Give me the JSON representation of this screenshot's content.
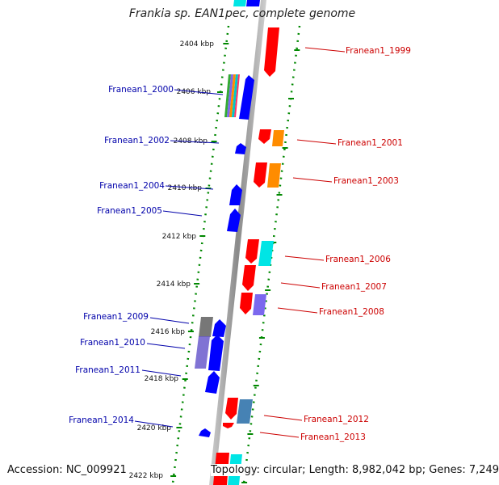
{
  "header": {
    "title": "Frankia sp. EAN1pec, complete genome"
  },
  "footer": {
    "accession": "Accession: NC_009921",
    "summary": "Topology: circular; Length: 8,982,042 bp; Genes: 7,249"
  },
  "ruler_ticks": [
    {
      "label": "2404 kbp"
    },
    {
      "label": "2406 kbp"
    },
    {
      "label": "2408 kbp"
    },
    {
      "label": "2410 kbp"
    },
    {
      "label": "2412 kbp"
    },
    {
      "label": "2414 kbp"
    },
    {
      "label": "2416 kbp"
    },
    {
      "label": "2418 kbp"
    },
    {
      "label": "2420 kbp"
    },
    {
      "label": "2422 kbp"
    }
  ],
  "left_labels": [
    {
      "label": "Franean1_2000",
      "color": "#0000aa"
    },
    {
      "label": "Franean1_2002",
      "color": "#0000aa"
    },
    {
      "label": "Franean1_2004",
      "color": "#0000aa"
    },
    {
      "label": "Franean1_2005",
      "color": "#0000aa"
    },
    {
      "label": "Franean1_2009",
      "color": "#0000aa"
    },
    {
      "label": "Franean1_2010",
      "color": "#0000aa"
    },
    {
      "label": "Franean1_2011",
      "color": "#0000aa"
    },
    {
      "label": "Franean1_2014",
      "color": "#0000aa"
    }
  ],
  "right_labels": [
    {
      "label": "Franean1_1999",
      "color": "#cc0000"
    },
    {
      "label": "Franean1_2001",
      "color": "#cc0000"
    },
    {
      "label": "Franean1_2003",
      "color": "#cc0000"
    },
    {
      "label": "Franean1_2006",
      "color": "#cc0000"
    },
    {
      "label": "Franean1_2007",
      "color": "#cc0000"
    },
    {
      "label": "Franean1_2008",
      "color": "#cc0000"
    },
    {
      "label": "Franean1_2012",
      "color": "#cc0000"
    },
    {
      "label": "Franean1_2013",
      "color": "#cc0000"
    }
  ],
  "colors": {
    "forward_gene": "#ff0000",
    "reverse_gene": "#0000ff",
    "backbone": "#999999",
    "ruler_dots": "#008800",
    "orange_feature": "#ff8c00",
    "cyan_feature": "#00e5e5",
    "purple_feature": "#7b68ee",
    "steel_feature": "#4682b4",
    "gray_feature": "#777777"
  }
}
